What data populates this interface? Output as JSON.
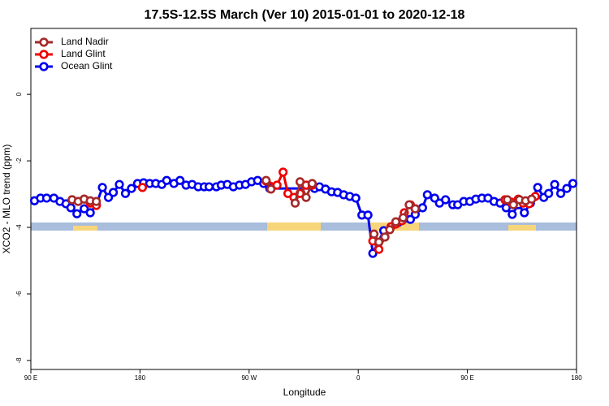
{
  "chart_data": {
    "type": "line",
    "title": "17.5S-12.5S March (Ver 10)   2015-01-01 to 2020-12-18",
    "x_label": "Longitude",
    "y_label": "XCO2 - MLO trend (ppm)",
    "xlim": [
      90,
      540
    ],
    "ylim": [
      -8.27,
      1.98
    ],
    "xticks": [
      {
        "value": 90,
        "label": "90 E"
      },
      180,
      {
        "value": 270,
        "label": "90 W"
      },
      {
        "value": 360,
        "label": "0"
      },
      {
        "value": 450,
        "label": "90 E"
      },
      {
        "value": 540,
        "label": "180"
      }
    ],
    "yticks": [
      0,
      -2,
      -4,
      -6,
      -8
    ],
    "legend": "upper left",
    "series": [
      {
        "name": "Land Nadir",
        "color": "#a52a2a",
        "x": [
          124,
          129,
          134,
          139,
          144,
          null,
          284,
          288,
          null,
          308,
          312,
          317,
          322,
          null,
          373,
          377,
          382,
          386,
          391,
          397,
          402,
          407,
          null,
          483,
          488,
          493,
          498,
          503
        ],
        "values": [
          -3.17,
          -3.22,
          -3.15,
          -3.2,
          -3.22,
          null,
          -2.59,
          -2.85,
          null,
          -3.27,
          -2.63,
          -3.1,
          -2.68,
          null,
          -4.2,
          -4.44,
          -4.29,
          -4.07,
          -3.83,
          -3.71,
          -3.32,
          -3.44,
          null,
          -3.17,
          -3.32,
          -3.17,
          -3.2,
          -3.15
        ]
      },
      {
        "name": "Land Glint",
        "color": "#ee0000",
        "x": [
          124,
          129,
          134,
          139,
          144,
          null,
          182,
          null,
          284,
          293,
          298,
          302,
          307,
          312,
          317,
          322,
          null,
          372,
          377,
          382,
          387,
          391,
          396,
          398,
          403,
          407,
          null,
          481,
          486,
          492,
          496,
          501,
          506
        ],
        "values": [
          -3.17,
          -3.22,
          -3.15,
          -3.27,
          -3.34,
          null,
          -2.8,
          null,
          -2.61,
          -2.73,
          -2.34,
          -2.98,
          -3.1,
          -2.98,
          -2.73,
          -2.73,
          null,
          -4.41,
          -4.66,
          -4.29,
          -3.98,
          -3.9,
          -3.8,
          -3.56,
          -3.32,
          -3.44,
          null,
          -3.17,
          -3.24,
          -3.15,
          -3.27,
          -3.29,
          -3.07
        ]
      },
      {
        "name": "Ocean Glint",
        "color": "#0000ee",
        "x": [
          93,
          98,
          103,
          109,
          114,
          119,
          123,
          128,
          134,
          139,
          144,
          149,
          154,
          158,
          163,
          168,
          173,
          178,
          183,
          188,
          193,
          198,
          202,
          208,
          213,
          218,
          223,
          228,
          233,
          237,
          243,
          247,
          252,
          257,
          262,
          267,
          272,
          277,
          282,
          287,
          324,
          328,
          333,
          338,
          343,
          348,
          353,
          358,
          363,
          368,
          372,
          381,
          393,
          397,
          403,
          407,
          413,
          417,
          423,
          427,
          432,
          438,
          442,
          447,
          452,
          457,
          462,
          467,
          472,
          477,
          482,
          487,
          492,
          497,
          502,
          508,
          513,
          517,
          522,
          527,
          532,
          537
        ],
        "values": [
          -3.2,
          -3.12,
          -3.12,
          -3.12,
          -3.22,
          -3.29,
          -3.41,
          -3.59,
          -3.44,
          -3.56,
          -3.32,
          -2.8,
          -3.1,
          -2.95,
          -2.71,
          -2.98,
          -2.83,
          -2.68,
          -2.66,
          -2.68,
          -2.68,
          -2.71,
          -2.59,
          -2.68,
          -2.59,
          -2.73,
          -2.71,
          -2.78,
          -2.78,
          -2.78,
          -2.78,
          -2.73,
          -2.71,
          -2.78,
          -2.73,
          -2.71,
          -2.63,
          -2.59,
          -2.68,
          -2.83,
          -2.83,
          -2.78,
          -2.85,
          -2.93,
          -2.95,
          -3.02,
          -3.07,
          -3.12,
          -3.63,
          -3.63,
          -4.78,
          -4.1,
          -3.85,
          -3.76,
          -3.76,
          -3.61,
          -3.41,
          -3.02,
          -3.12,
          -3.27,
          -3.17,
          -3.32,
          -3.32,
          -3.22,
          -3.22,
          -3.15,
          -3.12,
          -3.12,
          -3.22,
          -3.27,
          -3.41,
          -3.61,
          -3.32,
          -3.56,
          -3.27,
          -2.8,
          -3.1,
          -2.98,
          -2.71,
          -2.98,
          -2.83,
          -2.68
        ]
      }
    ]
  }
}
